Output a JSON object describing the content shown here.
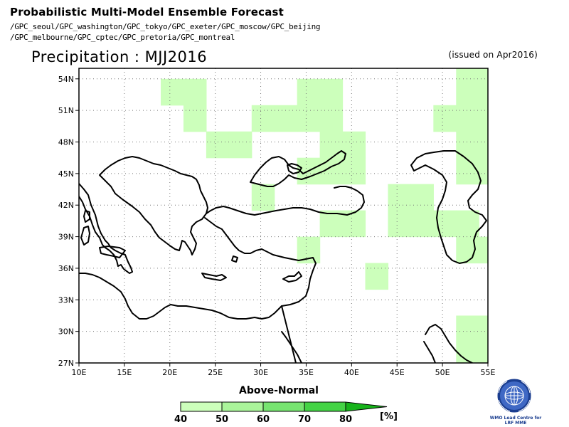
{
  "header": {
    "title": "Probabilistic Multi-Model Ensemble Forecast",
    "models_line1": "/GPC_seoul/GPC_washington/GPC_tokyo/GPC_exeter/GPC_moscow/GPC_beijing",
    "models_line2": "/GPC_melbourne/GPC_cptec/GPC_pretoria/GPC_montreal"
  },
  "map": {
    "title": "Precipitation : MJJ2016",
    "issued": "(issued on Apr2016)",
    "lon_range": [
      10,
      55
    ],
    "lat_range": [
      27,
      55
    ],
    "lon_ticks": [
      "10E",
      "15E",
      "20E",
      "25E",
      "30E",
      "35E",
      "40E",
      "45E",
      "50E",
      "55E"
    ],
    "lat_ticks": [
      "27N",
      "30N",
      "33N",
      "36N",
      "39N",
      "42N",
      "45N",
      "48N",
      "51N",
      "54N"
    ],
    "grid": "dotted",
    "shaded_category": "Above-Normal",
    "shaded_cells_40_50": [
      {
        "lon": [
          19,
          21.5
        ],
        "lat": [
          51.5,
          54
        ]
      },
      {
        "lon": [
          21.5,
          24
        ],
        "lat": [
          51.5,
          54
        ]
      },
      {
        "lon": [
          21.5,
          24
        ],
        "lat": [
          49,
          51.5
        ]
      },
      {
        "lon": [
          24,
          26.5
        ],
        "lat": [
          46.5,
          49
        ]
      },
      {
        "lon": [
          26.5,
          29
        ],
        "lat": [
          46.5,
          49
        ]
      },
      {
        "lon": [
          29,
          31.5
        ],
        "lat": [
          49,
          51.5
        ]
      },
      {
        "lon": [
          31.5,
          34
        ],
        "lat": [
          49,
          51.5
        ]
      },
      {
        "lon": [
          34,
          36.5
        ],
        "lat": [
          49,
          51.5
        ]
      },
      {
        "lon": [
          36.5,
          39
        ],
        "lat": [
          49,
          51.5
        ]
      },
      {
        "lon": [
          34,
          36.5
        ],
        "lat": [
          51.5,
          54
        ]
      },
      {
        "lon": [
          36.5,
          39
        ],
        "lat": [
          51.5,
          54
        ]
      },
      {
        "lon": [
          36.5,
          39
        ],
        "lat": [
          46.5,
          49
        ]
      },
      {
        "lon": [
          39,
          41.5
        ],
        "lat": [
          46.5,
          49
        ]
      },
      {
        "lon": [
          34,
          36.5
        ],
        "lat": [
          44,
          46.5
        ]
      },
      {
        "lon": [
          36.5,
          39
        ],
        "lat": [
          44,
          46.5
        ]
      },
      {
        "lon": [
          39,
          41.5
        ],
        "lat": [
          44,
          46.5
        ]
      },
      {
        "lon": [
          29,
          31.5
        ],
        "lat": [
          41.5,
          44
        ]
      },
      {
        "lon": [
          36.5,
          39
        ],
        "lat": [
          39,
          41.5
        ]
      },
      {
        "lon": [
          39,
          41.5
        ],
        "lat": [
          39,
          41.5
        ]
      },
      {
        "lon": [
          34,
          36.5
        ],
        "lat": [
          36.5,
          39
        ]
      },
      {
        "lon": [
          41.5,
          44
        ],
        "lat": [
          34,
          36.5
        ]
      },
      {
        "lon": [
          44,
          46.5
        ],
        "lat": [
          41.5,
          44
        ]
      },
      {
        "lon": [
          46.5,
          49
        ],
        "lat": [
          41.5,
          44
        ]
      },
      {
        "lon": [
          44,
          46.5
        ],
        "lat": [
          39,
          41.5
        ]
      },
      {
        "lon": [
          46.5,
          49
        ],
        "lat": [
          39,
          41.5
        ]
      },
      {
        "lon": [
          49,
          51.5
        ],
        "lat": [
          39,
          41.5
        ]
      },
      {
        "lon": [
          51.5,
          54
        ],
        "lat": [
          39,
          41.5
        ]
      },
      {
        "lon": [
          51.5,
          54
        ],
        "lat": [
          36.5,
          39
        ]
      },
      {
        "lon": [
          54,
          55
        ],
        "lat": [
          36.5,
          39
        ]
      },
      {
        "lon": [
          49,
          51.5
        ],
        "lat": [
          49,
          51.5
        ]
      },
      {
        "lon": [
          51.5,
          54
        ],
        "lat": [
          49,
          51.5
        ]
      },
      {
        "lon": [
          54,
          55
        ],
        "lat": [
          49,
          51.5
        ]
      },
      {
        "lon": [
          51.5,
          54
        ],
        "lat": [
          51.5,
          54
        ]
      },
      {
        "lon": [
          54,
          55
        ],
        "lat": [
          51.5,
          55
        ]
      },
      {
        "lon": [
          51.5,
          54
        ],
        "lat": [
          54,
          55
        ]
      },
      {
        "lon": [
          51.5,
          54
        ],
        "lat": [
          46.5,
          49
        ]
      },
      {
        "lon": [
          54,
          55
        ],
        "lat": [
          46.5,
          49
        ]
      },
      {
        "lon": [
          51.5,
          54
        ],
        "lat": [
          44,
          46.5
        ]
      },
      {
        "lon": [
          54,
          55
        ],
        "lat": [
          44,
          46.5
        ]
      },
      {
        "lon": [
          51.5,
          54
        ],
        "lat": [
          27,
          29.5
        ]
      },
      {
        "lon": [
          54,
          55
        ],
        "lat": [
          27,
          29.5
        ]
      },
      {
        "lon": [
          51.5,
          54
        ],
        "lat": [
          29.5,
          31.5
        ]
      },
      {
        "lon": [
          54,
          55
        ],
        "lat": [
          29.5,
          31.5
        ]
      }
    ]
  },
  "legend": {
    "title": "Above-Normal",
    "unit": "[%]",
    "labels": [
      "40",
      "50",
      "60",
      "70",
      "80"
    ],
    "colors": [
      "#ccffbb",
      "#aaf49a",
      "#77e470",
      "#44d345",
      "#16b31a"
    ]
  },
  "logo": {
    "line1": "WMO Lead Centre for",
    "line2": "LRF MME"
  },
  "colors": {
    "land_outline": "#000000",
    "shade_40_50": "#ccffbb"
  }
}
